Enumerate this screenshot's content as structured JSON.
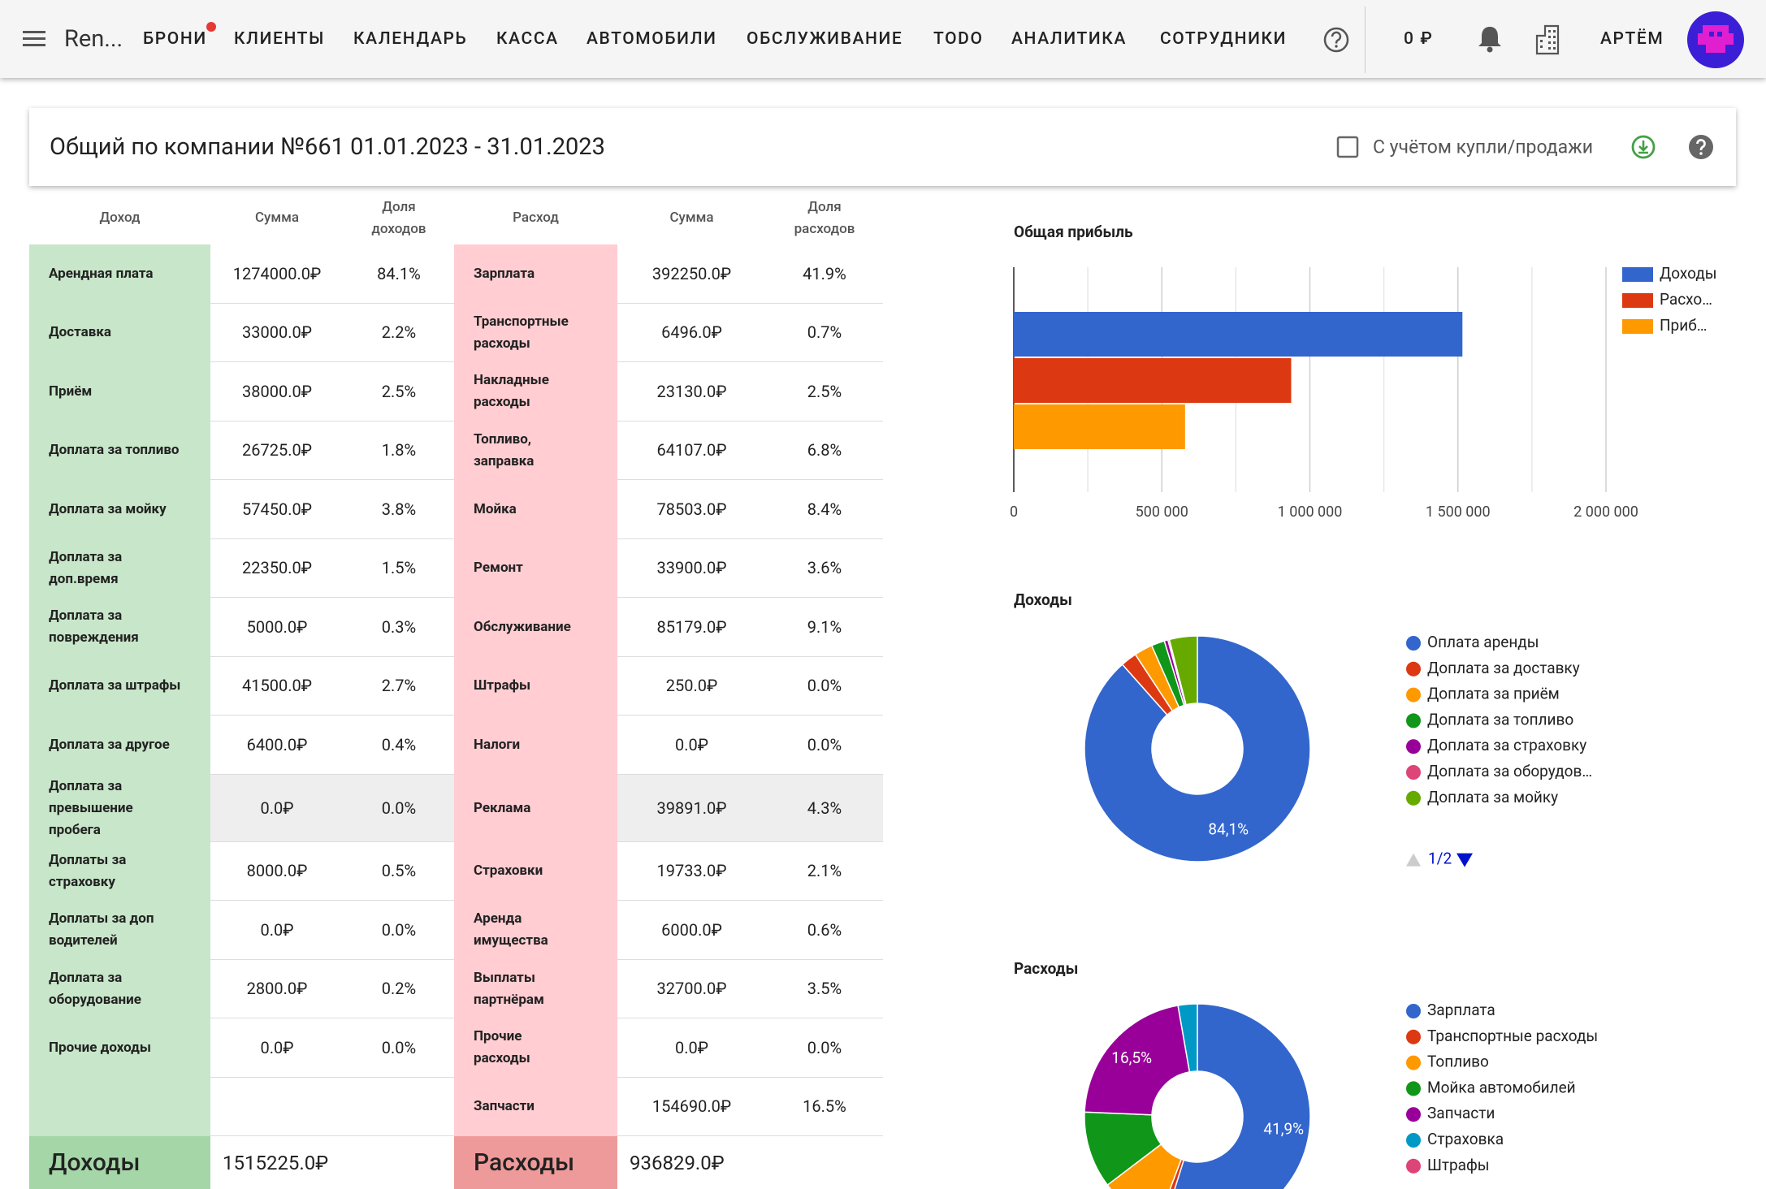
{
  "topbar": {
    "brand": "Ren...",
    "nav": [
      "БРОНИ",
      "КЛИЕНТЫ",
      "КАЛЕНДАРЬ",
      "КАССА",
      "АВТОМОБИЛИ",
      "ОБСЛУЖИВАНИЕ",
      "TODO",
      "АНАЛИТИКА",
      "СОТРУДНИКИ"
    ],
    "balance": "0 ₽",
    "user": "АРТЁМ"
  },
  "report": {
    "title": "Общий по компании №661 01.01.2023 - 31.01.2023",
    "checkbox_label": "С учётом купли/продажи"
  },
  "table": {
    "income_headers": [
      "Доход",
      "Сумма",
      "Доля доходов"
    ],
    "expense_headers": [
      "Расход",
      "Сумма",
      "Доля расходов"
    ],
    "income_rows": [
      [
        "Арендная плата",
        "1274000.0₽",
        "84.1%"
      ],
      [
        "Доставка",
        "33000.0₽",
        "2.2%"
      ],
      [
        "Приём",
        "38000.0₽",
        "2.5%"
      ],
      [
        "Доплата за топливо",
        "26725.0₽",
        "1.8%"
      ],
      [
        "Доплата за мойку",
        "57450.0₽",
        "3.8%"
      ],
      [
        "Доплата за доп.время",
        "22350.0₽",
        "1.5%"
      ],
      [
        "Доплата за повреждения",
        "5000.0₽",
        "0.3%"
      ],
      [
        "Доплата за штрафы",
        "41500.0₽",
        "2.7%"
      ],
      [
        "Доплата за другое",
        "6400.0₽",
        "0.4%"
      ],
      [
        "Доплата за превышение пробега",
        "0.0₽",
        "0.0%"
      ],
      [
        "Доплаты за страховку",
        "8000.0₽",
        "0.5%"
      ],
      [
        "Доплаты за доп водителей",
        "0.0₽",
        "0.0%"
      ],
      [
        "Доплата за оборудование",
        "2800.0₽",
        "0.2%"
      ],
      [
        "Прочие доходы",
        "0.0₽",
        "0.0%"
      ]
    ],
    "expense_rows": [
      [
        "Зарплата",
        "392250.0₽",
        "41.9%"
      ],
      [
        "Транспортные расходы",
        "6496.0₽",
        "0.7%"
      ],
      [
        "Накладные расходы",
        "23130.0₽",
        "2.5%"
      ],
      [
        "Топливо, заправка",
        "64107.0₽",
        "6.8%"
      ],
      [
        "Мойка",
        "78503.0₽",
        "8.4%"
      ],
      [
        "Ремонт",
        "33900.0₽",
        "3.6%"
      ],
      [
        "Обслуживание",
        "85179.0₽",
        "9.1%"
      ],
      [
        "Штрафы",
        "250.0₽",
        "0.0%"
      ],
      [
        "Налоги",
        "0.0₽",
        "0.0%"
      ],
      [
        "Реклама",
        "39891.0₽",
        "4.3%"
      ],
      [
        "Страховки",
        "19733.0₽",
        "2.1%"
      ],
      [
        "Аренда имущества",
        "6000.0₽",
        "0.6%"
      ],
      [
        "Выплаты партнёрам",
        "32700.0₽",
        "3.5%"
      ],
      [
        "Прочие расходы",
        "0.0₽",
        "0.0%"
      ],
      [
        "Запчасти",
        "154690.0₽",
        "16.5%"
      ]
    ],
    "income_total": [
      "Доходы",
      "1515225.0₽"
    ],
    "expense_total": [
      "Расходы",
      "936829.0₽"
    ]
  },
  "chart_data": [
    {
      "type": "bar",
      "orientation": "horizontal",
      "title": "Общая прибыль",
      "series": [
        {
          "name": "Доходы",
          "color": "#3366cc",
          "values": [
            1515225
          ]
        },
        {
          "name": "Расхо…",
          "color": "#dc3912",
          "values": [
            936829
          ]
        },
        {
          "name": "Приб…",
          "color": "#ff9900",
          "values": [
            578396
          ]
        }
      ],
      "xlim": [
        0,
        2000000
      ],
      "xticks": [
        0,
        {
          "value": 500000,
          "label": "500 000"
        },
        {
          "value": 1000000,
          "label": "1 000 000"
        },
        {
          "value": 1500000,
          "label": "1 500 000"
        },
        {
          "value": 2000000,
          "label": "2 000 000"
        }
      ],
      "minor_xticks": [
        250000,
        750000,
        1250000,
        1750000
      ],
      "grid": true,
      "legend": "right"
    },
    {
      "type": "pie",
      "donut": true,
      "title": "Доходы",
      "categories": [
        "Оплата аренды",
        "Доплата за доставку",
        "Доплата за приём",
        "Доплата за топливо",
        "Доплата за страховку",
        "Доплата за оборудов…",
        "Доплата за мойку"
      ],
      "values": [
        84.1,
        2.2,
        2.5,
        1.8,
        0.5,
        0.2,
        3.8
      ],
      "value_labels": [
        "84,1%",
        null,
        null,
        null,
        null,
        null,
        null
      ],
      "colors": [
        "#3366cc",
        "#dc3912",
        "#ff9900",
        "#109618",
        "#990099",
        "#dd4477",
        "#66aa00"
      ],
      "legend": "right",
      "legend_page": "1/2"
    },
    {
      "type": "pie",
      "donut": true,
      "title": "Расходы",
      "categories": [
        "Зарплата",
        "Транспортные расходы",
        "Топливо",
        "Мойка автомобилей",
        "Запчасти",
        "Страховка",
        "Штрафы"
      ],
      "values": [
        41.9,
        0.7,
        6.8,
        8.4,
        16.5,
        2.1,
        0.0
      ],
      "value_labels": [
        "41,9%",
        null,
        null,
        null,
        "16,5%",
        null,
        null
      ],
      "colors": [
        "#3366cc",
        "#dc3912",
        "#ff9900",
        "#109618",
        "#990099",
        "#0099c6",
        "#dd4477"
      ],
      "legend": "right"
    }
  ]
}
